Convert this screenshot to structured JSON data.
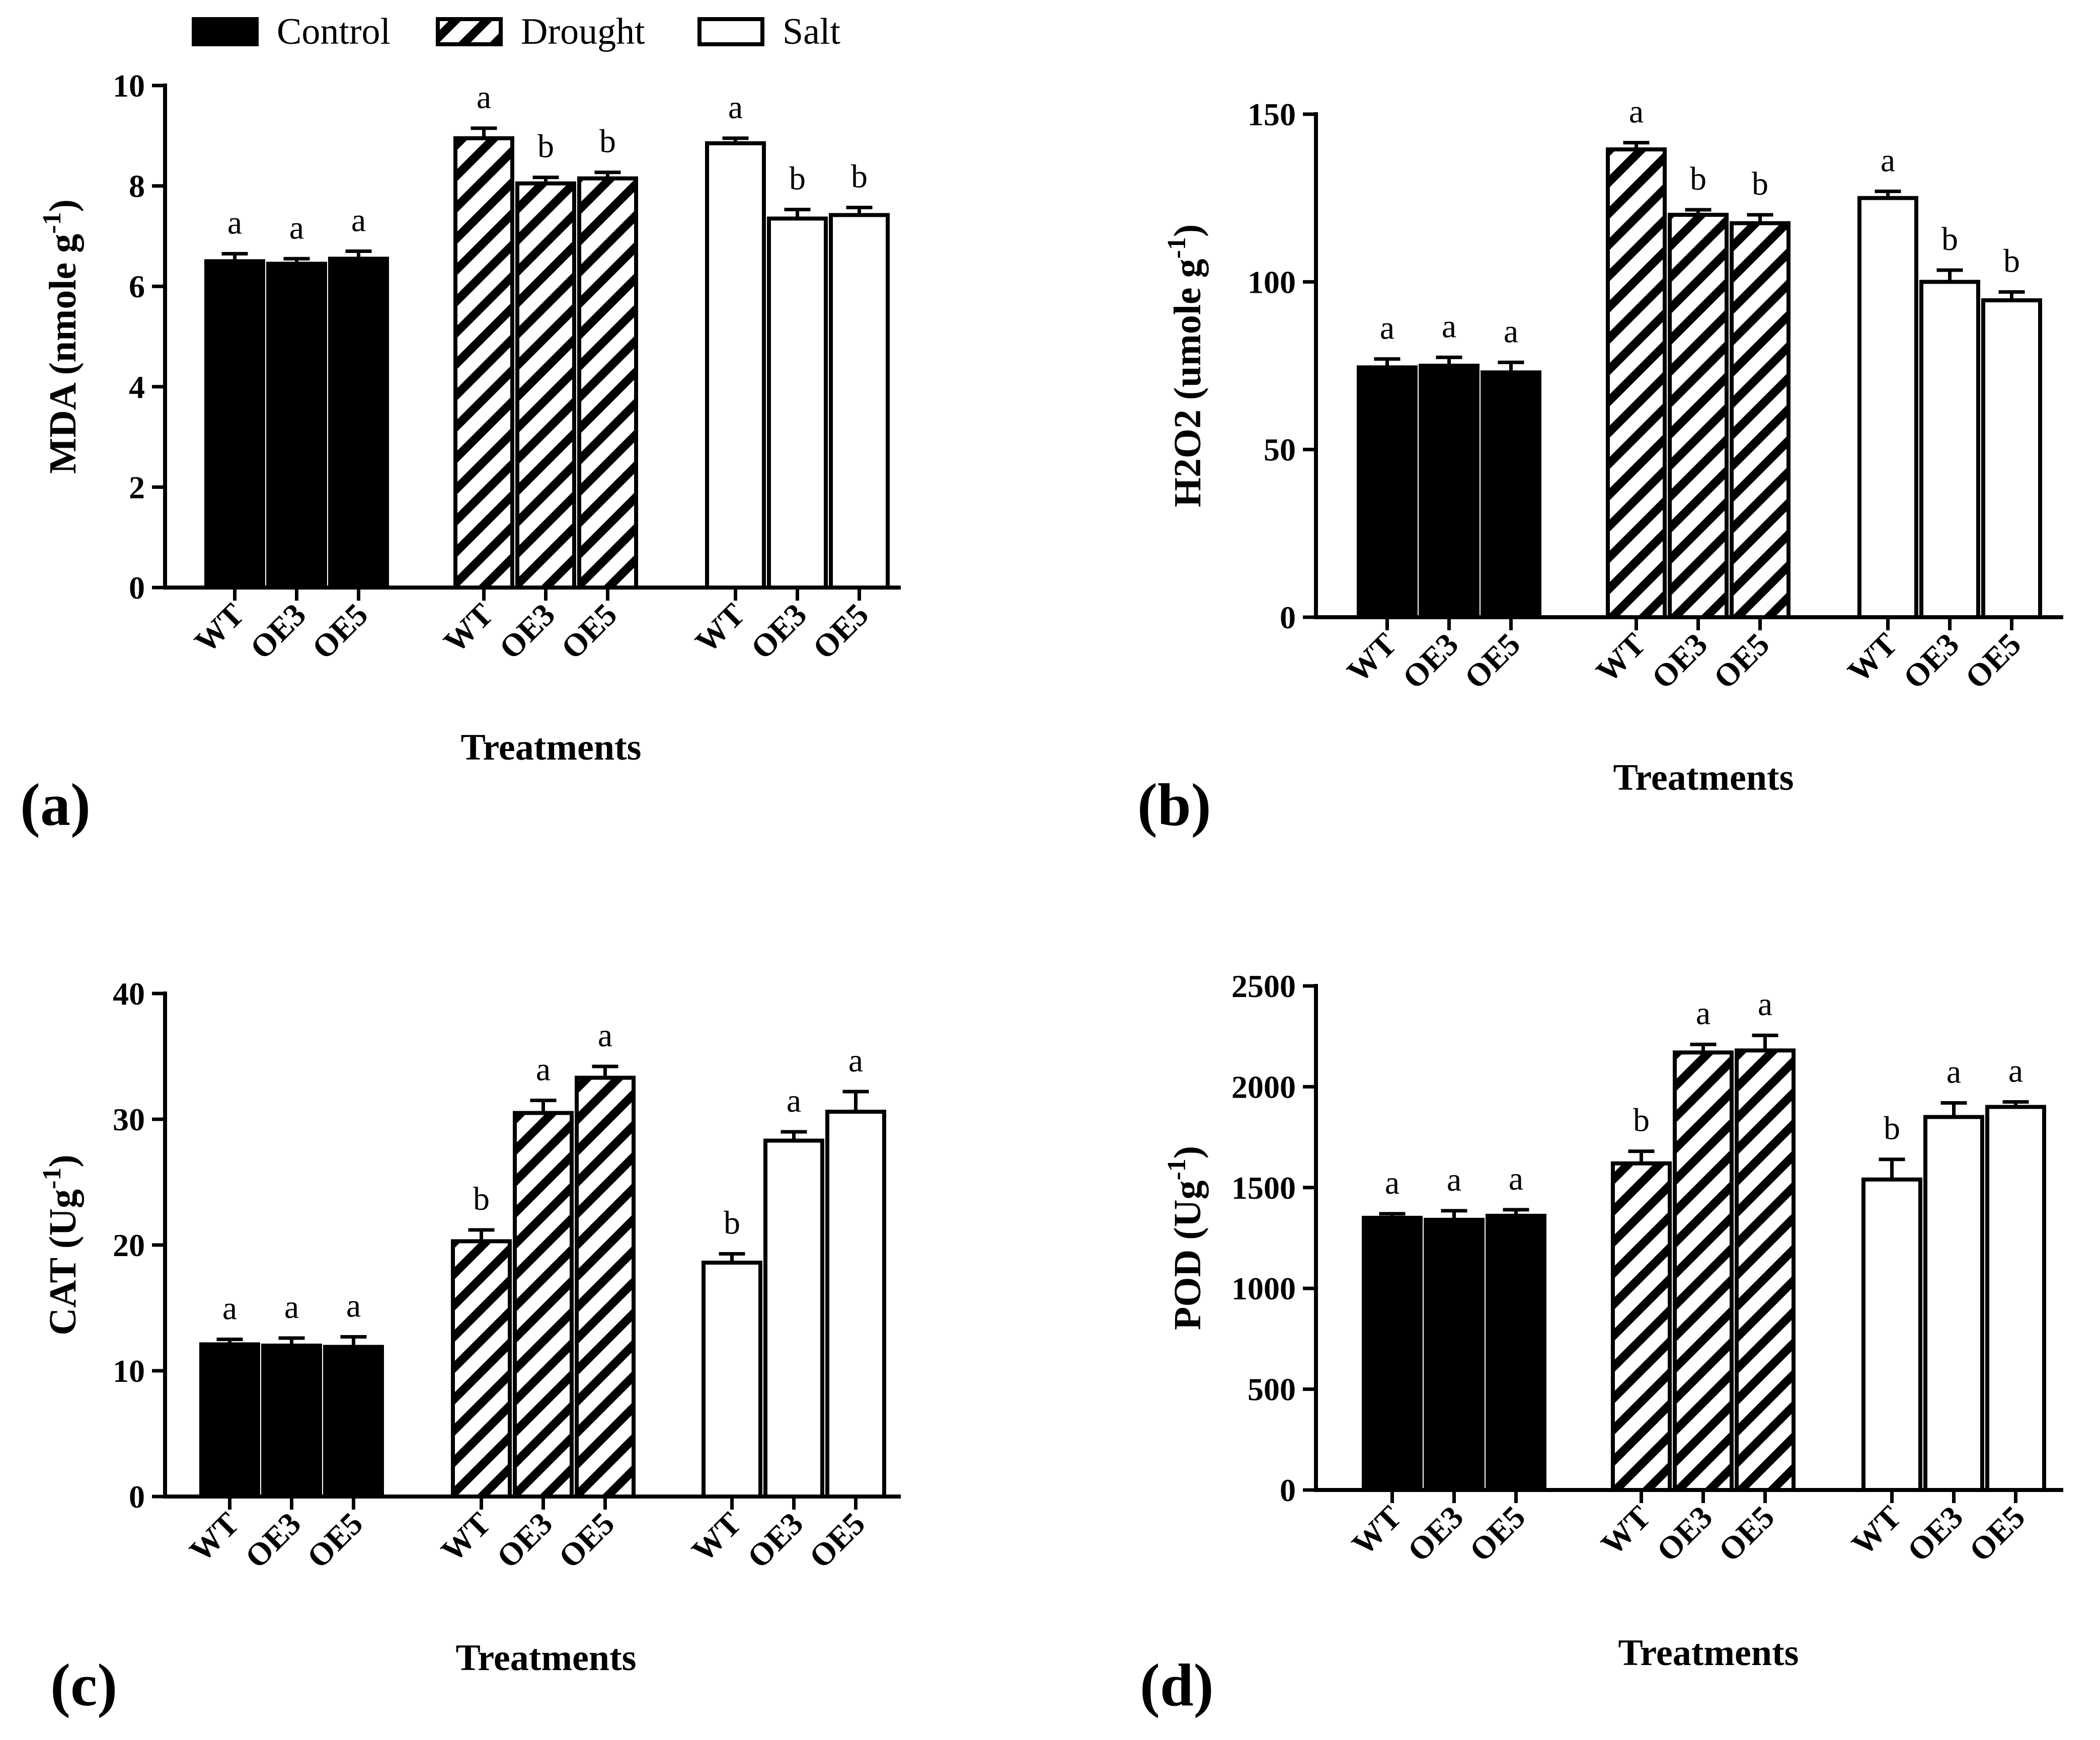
{
  "legend": {
    "items": [
      {
        "label": "Control",
        "pattern": "solid"
      },
      {
        "label": "Drought",
        "pattern": "hatch"
      },
      {
        "label": "Salt",
        "pattern": "open"
      }
    ]
  },
  "colors": {
    "ink": "#000000",
    "background": "#ffffff"
  },
  "chart_data": [
    {
      "type": "bar",
      "panel": "(a)",
      "title": "",
      "ylabel": "MDA (nmole g",
      "ylabel_sup": "-1",
      "ylabel_end": ")",
      "xlabel": "Treatments",
      "categories": [
        "WT",
        "OE3",
        "OE5"
      ],
      "ylim": [
        0,
        10
      ],
      "yticks": [
        0,
        2,
        4,
        6,
        8,
        10
      ],
      "series": [
        {
          "name": "Control",
          "values": [
            6.5,
            6.45,
            6.55
          ],
          "errors": [
            0.15,
            0.1,
            0.15
          ],
          "letters": [
            "a",
            "a",
            "a"
          ]
        },
        {
          "name": "Drought",
          "values": [
            8.95,
            8.05,
            8.15
          ],
          "errors": [
            0.2,
            0.12,
            0.12
          ],
          "letters": [
            "a",
            "b",
            "b"
          ]
        },
        {
          "name": "Salt",
          "values": [
            8.85,
            7.35,
            7.42
          ],
          "errors": [
            0.1,
            0.18,
            0.15
          ],
          "letters": [
            "a",
            "b",
            "b"
          ]
        }
      ]
    },
    {
      "type": "bar",
      "panel": "(b)",
      "title": "",
      "ylabel": "H2O2 (umole g",
      "ylabel_sup": "-1",
      "ylabel_end": ")",
      "xlabel": "Treatments",
      "categories": [
        "WT",
        "OE3",
        "OE5"
      ],
      "ylim": [
        0,
        150
      ],
      "yticks": [
        0,
        50,
        100,
        150
      ],
      "series": [
        {
          "name": "Control",
          "values": [
            74.5,
            75,
            73
          ],
          "errors": [
            2.5,
            2.5,
            3
          ],
          "letters": [
            "a",
            "a",
            "a"
          ]
        },
        {
          "name": "Drought",
          "values": [
            139.5,
            120,
            117.5
          ],
          "errors": [
            2,
            1.5,
            2.5
          ],
          "letters": [
            "a",
            "b",
            "b"
          ]
        },
        {
          "name": "Salt",
          "values": [
            125,
            100,
            94.5
          ],
          "errors": [
            2,
            3.5,
            2.5
          ],
          "letters": [
            "a",
            "b",
            "b"
          ]
        }
      ]
    },
    {
      "type": "bar",
      "panel": "(c)",
      "title": "",
      "ylabel": "CAT (Ug",
      "ylabel_sup": "-1",
      "ylabel_end": ")",
      "xlabel": "Treatments",
      "categories": [
        "WT",
        "OE3",
        "OE5"
      ],
      "ylim": [
        0,
        40
      ],
      "yticks": [
        0,
        10,
        20,
        30,
        40
      ],
      "series": [
        {
          "name": "Control",
          "values": [
            12.1,
            12,
            11.9
          ],
          "errors": [
            0.4,
            0.6,
            0.8
          ],
          "letters": [
            "a",
            "a",
            "a"
          ]
        },
        {
          "name": "Drought",
          "values": [
            20.3,
            30.5,
            33.3
          ],
          "errors": [
            0.9,
            1,
            0.9
          ],
          "letters": [
            "b",
            "a",
            "a"
          ]
        },
        {
          "name": "Salt",
          "values": [
            18.6,
            28.3,
            30.6
          ],
          "errors": [
            0.7,
            0.7,
            1.6
          ],
          "letters": [
            "b",
            "a",
            "a"
          ]
        }
      ]
    },
    {
      "type": "bar",
      "panel": "(d)",
      "title": "",
      "ylabel": "POD (Ug",
      "ylabel_sup": "-1",
      "ylabel_end": ")",
      "xlabel": "Treatments",
      "categories": [
        "WT",
        "OE3",
        "OE5"
      ],
      "ylim": [
        0,
        2500
      ],
      "yticks": [
        0,
        500,
        1000,
        1500,
        2000,
        2500
      ],
      "series": [
        {
          "name": "Control",
          "values": [
            1350,
            1340,
            1360
          ],
          "errors": [
            20,
            45,
            30
          ],
          "letters": [
            "a",
            "a",
            "a"
          ]
        },
        {
          "name": "Drought",
          "values": [
            1620,
            2170,
            2180
          ],
          "errors": [
            60,
            40,
            75
          ],
          "letters": [
            "b",
            "a",
            "a"
          ]
        },
        {
          "name": "Salt",
          "values": [
            1540,
            1850,
            1900
          ],
          "errors": [
            100,
            70,
            25
          ],
          "letters": [
            "b",
            "a",
            "a"
          ]
        }
      ]
    }
  ]
}
